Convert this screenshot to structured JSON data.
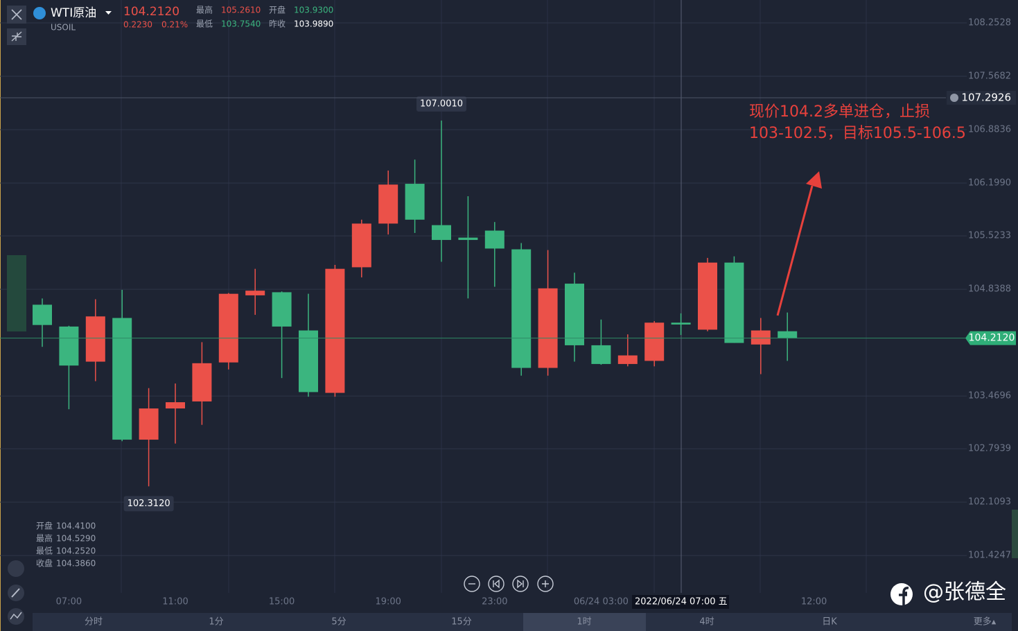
{
  "header": {
    "symbol": "WTI原油",
    "code": "USOIL",
    "price": "104.2120",
    "change": "0.2230",
    "change_pct": "0.21%",
    "stats": [
      {
        "label": "最高",
        "value": "105.2610"
      },
      {
        "label": "开盘",
        "value": "103.9300"
      },
      {
        "label": "最低",
        "value": "103.7540"
      },
      {
        "label": "昨收",
        "value": "103.9890"
      }
    ]
  },
  "readout": [
    {
      "label": "开盘",
      "value": "104.4100"
    },
    {
      "label": "最高",
      "value": "104.5290"
    },
    {
      "label": "最低",
      "value": "104.2520"
    },
    {
      "label": "收盘",
      "value": "104.3860"
    }
  ],
  "crosshair": "2022/06/24 07:00 五",
  "chart_data": {
    "type": "candlestick",
    "categories": [
      null,
      "07:00",
      null,
      null,
      null,
      "11:00",
      null,
      null,
      null,
      "15:00",
      null,
      null,
      null,
      "19:00",
      null,
      null,
      null,
      "23:00",
      null,
      null,
      null,
      "06/24 03:00",
      null,
      null,
      null,
      null,
      null,
      null,
      null,
      "12:00"
    ],
    "open": [
      104.64,
      104.36,
      103.91,
      104.47,
      102.91,
      103.31,
      103.4,
      103.9,
      104.76,
      104.8,
      104.31,
      103.51,
      105.12,
      105.68,
      106.19,
      105.66,
      105.5,
      105.59,
      105.35,
      103.83,
      104.91,
      104.12,
      103.88,
      103.92,
      104.41,
      104.32,
      105.18,
      104.13,
      104.3,
      null
    ],
    "high": [
      104.72,
      104.37,
      104.71,
      104.83,
      103.57,
      103.63,
      104.16,
      104.79,
      105.1,
      104.81,
      104.78,
      105.15,
      105.73,
      106.36,
      106.5,
      107.001,
      106.03,
      105.7,
      105.43,
      105.34,
      105.05,
      104.45,
      104.26,
      104.43,
      104.529,
      105.24,
      105.26,
      104.47,
      104.54,
      null
    ],
    "low": [
      104.1,
      103.3,
      103.66,
      102.89,
      102.312,
      102.86,
      103.1,
      103.81,
      104.51,
      103.7,
      103.46,
      103.46,
      104.99,
      105.54,
      105.56,
      105.19,
      104.72,
      104.87,
      103.73,
      103.73,
      103.91,
      103.87,
      103.85,
      103.85,
      104.252,
      104.3,
      104.15,
      103.75,
      103.92,
      null
    ],
    "close": [
      104.38,
      103.86,
      104.49,
      102.91,
      103.31,
      103.39,
      103.89,
      104.78,
      104.82,
      104.36,
      103.52,
      105.1,
      105.68,
      106.18,
      105.73,
      105.47,
      105.47,
      105.36,
      103.83,
      104.85,
      104.12,
      103.88,
      103.99,
      104.41,
      104.386,
      105.18,
      104.15,
      104.31,
      104.212,
      null
    ],
    "up_color": "#eb5149",
    "down_color": "#3bb57f",
    "ylim": [
      100.9461,
      108.5461
    ],
    "yticks": [
      108.2528,
      107.5682,
      106.8836,
      {
        "value": 106.199,
        "label": "106.1990"
      },
      105.5233,
      104.8388,
      103.4696,
      102.7939,
      102.1093,
      101.4247
    ],
    "grid": true,
    "extremes": [
      {
        "value": 107.001,
        "label": "107.0010"
      },
      {
        "value": 102.312,
        "label": "102.3120"
      }
    ],
    "price_lines": [
      {
        "value": 107.2926,
        "label": "107.2926",
        "kind": "alert"
      },
      {
        "value": 104.212,
        "label": "104.2120",
        "kind": "current"
      }
    ],
    "annotation": [
      "现价104.2多单进仓，止损",
      "103-102.5，目标105.5-106.5"
    ]
  },
  "tabs": [
    "分时",
    "1分",
    "5分",
    "15分",
    "1时",
    "4时",
    "日K",
    "更多▴"
  ],
  "watermark": "@张德全"
}
